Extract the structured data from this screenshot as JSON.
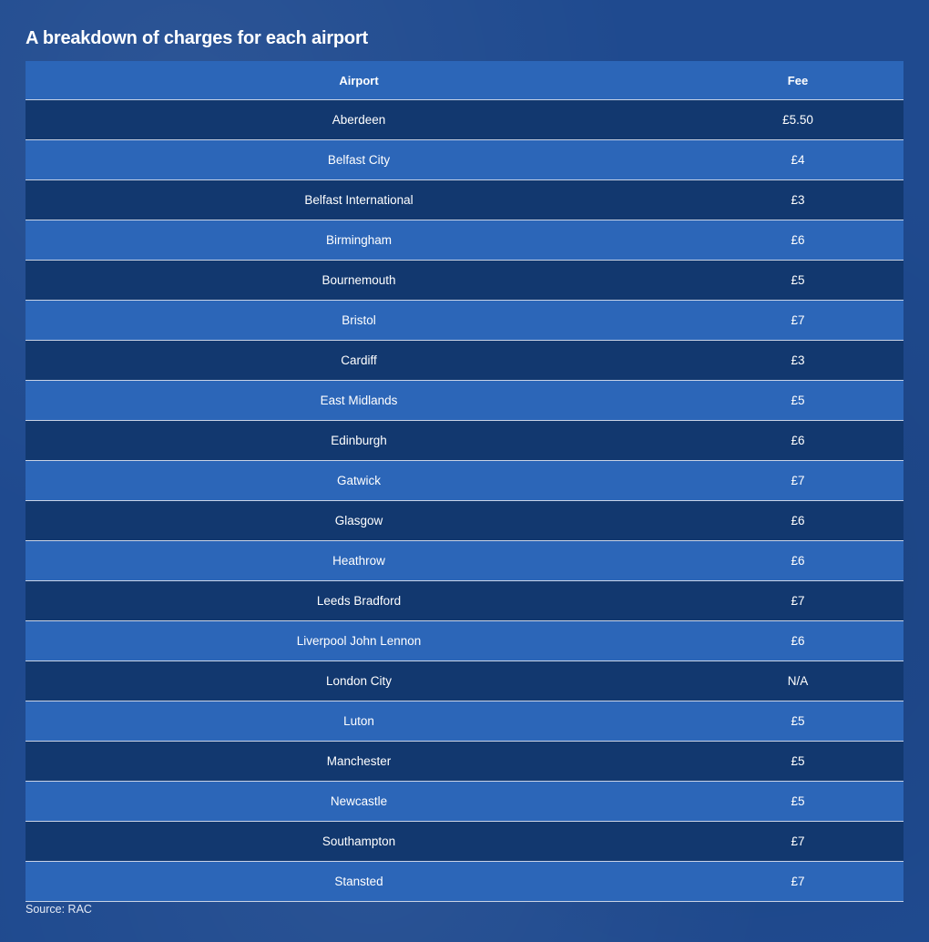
{
  "title": "A breakdown of charges for each airport",
  "source": "Source: RAC",
  "colors": {
    "background": "#1f4a8f",
    "row_dark": "#12386f",
    "row_light": "#2c66b8",
    "text": "#ffffff"
  },
  "chart_data": {
    "type": "table",
    "title": "A breakdown of charges for each airport",
    "columns": [
      "Airport",
      "Fee"
    ],
    "rows": [
      [
        "Aberdeen",
        "£5.50"
      ],
      [
        "Belfast City",
        "£4"
      ],
      [
        "Belfast International",
        "£3"
      ],
      [
        "Birmingham",
        "£6"
      ],
      [
        "Bournemouth",
        "£5"
      ],
      [
        "Bristol",
        "£7"
      ],
      [
        "Cardiff",
        "£3"
      ],
      [
        "East Midlands",
        "£5"
      ],
      [
        "Edinburgh",
        "£6"
      ],
      [
        "Gatwick",
        "£7"
      ],
      [
        "Glasgow",
        "£6"
      ],
      [
        "Heathrow",
        "£6"
      ],
      [
        "Leeds Bradford",
        "£7"
      ],
      [
        "Liverpool John Lennon",
        "£6"
      ],
      [
        "London City",
        "N/A"
      ],
      [
        "Luton",
        "£5"
      ],
      [
        "Manchester",
        "£5"
      ],
      [
        "Newcastle",
        "£5"
      ],
      [
        "Southampton",
        "£7"
      ],
      [
        "Stansted",
        "£7"
      ]
    ],
    "source": "Source: RAC"
  }
}
